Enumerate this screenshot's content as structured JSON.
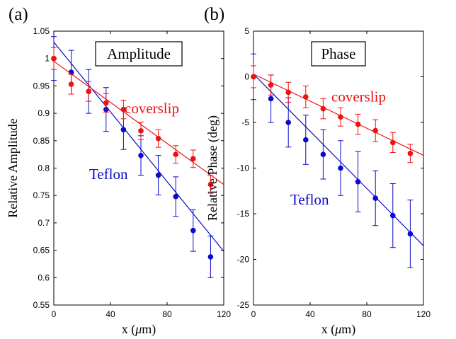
{
  "colors": {
    "teflon": "#0a0acc",
    "coverslip": "#ee1111",
    "axis": "#000000",
    "box_bg": "#ffffff"
  },
  "chart_data": [
    {
      "type": "scatter",
      "panel_label": "(a)",
      "title": "Amplitude",
      "xlabel": "x (μm)",
      "xlabel_prefix": "x (",
      "xlabel_unit_greek": "μ",
      "xlabel_suffix": "m)",
      "ylabel": "Relative Amplitude",
      "xlim": [
        0,
        120
      ],
      "ylim": [
        0.55,
        1.05
      ],
      "xticks": [
        0,
        40,
        80,
        120
      ],
      "xtick_labels": [
        "0",
        "40",
        "80",
        "120"
      ],
      "yticks": [
        0.55,
        0.6,
        0.65,
        0.7,
        0.75,
        0.8,
        0.85,
        0.9,
        0.95,
        1,
        1.05
      ],
      "ytick_labels": [
        "0.55",
        "0.6",
        "0.65",
        "0.7",
        "0.75",
        "0.8",
        "0.85",
        "0.9",
        "0.95",
        "1",
        "1.05"
      ],
      "series": [
        {
          "name": "Teflon",
          "color_key": "teflon",
          "x": [
            0,
            12.3,
            24.6,
            36.9,
            49.2,
            61.5,
            73.8,
            86.1,
            98.4,
            110.7
          ],
          "y": [
            1.0,
            0.975,
            0.94,
            0.907,
            0.87,
            0.823,
            0.787,
            0.748,
            0.686,
            0.638
          ],
          "err": [
            0.04,
            0.04,
            0.04,
            0.04,
            0.036,
            0.036,
            0.036,
            0.036,
            0.038,
            0.038
          ],
          "fit": {
            "x": [
              0,
              120
            ],
            "y": [
              1.03,
              0.648
            ]
          }
        },
        {
          "name": "coverslip",
          "color_key": "coverslip",
          "x": [
            0,
            12.3,
            24.6,
            36.9,
            49.2,
            61.5,
            73.8,
            86.1,
            98.4,
            110.7
          ],
          "y": [
            1.0,
            0.953,
            0.94,
            0.919,
            0.907,
            0.868,
            0.854,
            0.825,
            0.817,
            0.77
          ],
          "err": [
            0.02,
            0.018,
            0.018,
            0.017,
            0.017,
            0.016,
            0.016,
            0.016,
            0.016,
            0.016
          ],
          "fit": {
            "x": [
              0,
              120
            ],
            "y": [
              0.995,
              0.77
            ]
          }
        }
      ],
      "labels": [
        {
          "text": "coverslip",
          "color_key": "coverslip",
          "x": 50,
          "y": 0.9
        },
        {
          "text": "Teflon",
          "color_key": "teflon",
          "x": 25,
          "y": 0.78
        }
      ]
    },
    {
      "type": "scatter",
      "panel_label": "(b)",
      "title": "Phase",
      "xlabel": "x (μm)",
      "xlabel_prefix": "x (",
      "xlabel_unit_greek": "μ",
      "xlabel_suffix": "m)",
      "ylabel": "Relative Phase (deg)",
      "xlim": [
        0,
        120
      ],
      "ylim": [
        -25,
        5
      ],
      "xticks": [
        0,
        40,
        80,
        120
      ],
      "xtick_labels": [
        "0",
        "40",
        "80",
        "120"
      ],
      "yticks": [
        -25,
        -20,
        -15,
        -10,
        -5,
        0,
        5
      ],
      "ytick_labels": [
        "-25",
        "-20",
        "-15",
        "-10",
        "-5",
        "0",
        "5"
      ],
      "series": [
        {
          "name": "Teflon",
          "color_key": "teflon",
          "x": [
            0,
            12.3,
            24.6,
            36.9,
            49.2,
            61.5,
            73.8,
            86.1,
            98.4,
            110.7
          ],
          "y": [
            0,
            -2.4,
            -5.0,
            -6.9,
            -8.5,
            -10.0,
            -11.5,
            -13.3,
            -15.2,
            -17.2
          ],
          "err": [
            2.5,
            2.6,
            2.7,
            2.7,
            2.7,
            3.0,
            3.3,
            3.0,
            3.5,
            3.7
          ],
          "fit": {
            "x": [
              0,
              120
            ],
            "y": [
              0.3,
              -18.5
            ]
          }
        },
        {
          "name": "coverslip",
          "color_key": "coverslip",
          "x": [
            0,
            12.3,
            24.6,
            36.9,
            49.2,
            61.5,
            73.8,
            86.1,
            98.4,
            110.7
          ],
          "y": [
            0,
            -0.9,
            -1.7,
            -2.2,
            -3.5,
            -4.4,
            -5.2,
            -5.9,
            -7.2,
            -8.4
          ],
          "err": [
            1.2,
            1.1,
            1.1,
            1.2,
            1.1,
            1.0,
            1.1,
            1.2,
            1.1,
            1.0
          ],
          "fit": {
            "x": [
              0,
              120
            ],
            "y": [
              0.3,
              -8.6
            ]
          }
        }
      ],
      "labels": [
        {
          "text": "coverslip",
          "color_key": "coverslip",
          "x": 55,
          "y": -2.7
        },
        {
          "text": "Teflon",
          "color_key": "teflon",
          "x": 26,
          "y": -14
        }
      ]
    }
  ]
}
